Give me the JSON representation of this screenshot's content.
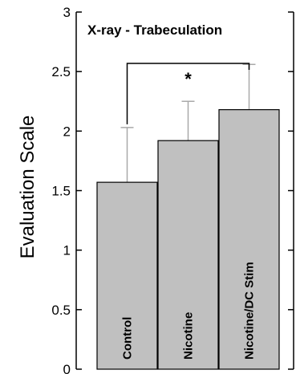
{
  "chart_data": {
    "type": "bar",
    "title": "X-ray - Trabeculation",
    "xlabel": "",
    "ylabel": "Evaluation Scale",
    "ylim": [
      0,
      3
    ],
    "yticks": [
      "0",
      "0.5",
      "1",
      "1.5",
      "2",
      "2.5",
      "3"
    ],
    "categories": [
      "Control",
      "Nicotine",
      "Nicotine/DC Stim"
    ],
    "values": [
      1.57,
      1.92,
      2.18
    ],
    "errors": [
      0.46,
      0.33,
      0.38
    ],
    "significance": {
      "from": 0,
      "to": 2,
      "label": "*"
    },
    "bar_color": "#c0c0c0",
    "error_color": "#a9a9a9",
    "grid": false
  }
}
